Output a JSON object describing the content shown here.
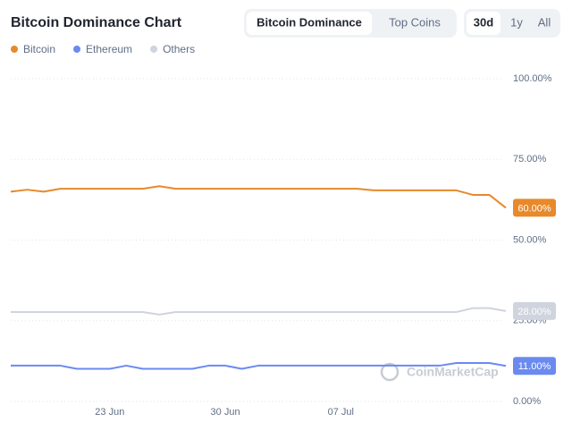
{
  "chart_data": {
    "type": "line",
    "title": "Bitcoin Dominance Chart",
    "categories": [
      null,
      null,
      null,
      null,
      null,
      null,
      "23 Jun",
      null,
      null,
      null,
      null,
      null,
      null,
      "30 Jun",
      null,
      null,
      null,
      null,
      null,
      null,
      "07 Jul",
      null,
      null,
      null,
      null,
      null,
      null,
      null,
      null,
      null,
      null
    ],
    "series": [
      {
        "name": "Bitcoin",
        "color": "#e8892b",
        "values": [
          65.0,
          65.6,
          65.0,
          65.9,
          65.9,
          65.9,
          65.9,
          65.9,
          65.9,
          66.7,
          65.9,
          65.9,
          65.9,
          65.9,
          65.9,
          65.9,
          65.9,
          65.9,
          65.9,
          65.9,
          65.9,
          65.9,
          65.4,
          65.4,
          65.4,
          65.4,
          65.4,
          65.4,
          64.0,
          64.0,
          60
        ],
        "value_labels": [
          null,
          null,
          null,
          null,
          null,
          null,
          null,
          null,
          null,
          null,
          null,
          null,
          null,
          null,
          null,
          null,
          null,
          null,
          null,
          null,
          null,
          null,
          null,
          null,
          null,
          null,
          null,
          null,
          null,
          null,
          "60.00%"
        ]
      },
      {
        "name": "Ethereum",
        "color": "#6b8af0",
        "values": [
          11.1,
          11.1,
          11.1,
          11.1,
          10.1,
          10.1,
          10.1,
          11.1,
          10.1,
          10.1,
          10.1,
          10.1,
          11.1,
          11.1,
          10.1,
          11.1,
          11.1,
          11.1,
          11.1,
          11.1,
          11.1,
          11.1,
          11.1,
          11.1,
          11.1,
          11.1,
          11.1,
          11.9,
          11.9,
          11.9,
          11
        ],
        "value_labels": [
          null,
          null,
          null,
          null,
          null,
          null,
          null,
          null,
          null,
          null,
          null,
          null,
          null,
          null,
          null,
          null,
          null,
          null,
          null,
          null,
          null,
          null,
          null,
          null,
          null,
          null,
          null,
          null,
          null,
          null,
          "11.00%"
        ]
      },
      {
        "name": "Others",
        "color": "#cfd4de",
        "values": [
          27.7,
          27.7,
          27.7,
          27.7,
          27.7,
          27.7,
          27.7,
          27.7,
          27.7,
          26.9,
          27.7,
          27.7,
          27.7,
          27.7,
          27.7,
          27.7,
          27.7,
          27.7,
          27.7,
          27.7,
          27.7,
          27.7,
          27.7,
          27.7,
          27.7,
          27.7,
          27.7,
          27.7,
          28.9,
          28.9,
          28
        ],
        "value_labels": [
          null,
          null,
          null,
          null,
          null,
          null,
          null,
          null,
          null,
          null,
          null,
          null,
          null,
          null,
          null,
          null,
          null,
          null,
          null,
          null,
          null,
          null,
          null,
          null,
          null,
          null,
          null,
          null,
          null,
          null,
          "28.00%"
        ]
      }
    ],
    "ylim": [
      0,
      100
    ],
    "yticks": [
      {
        "value": 0,
        "label": "0.00%"
      },
      {
        "value": 25,
        "label": "25.00%"
      },
      {
        "value": 50,
        "label": "50.00%"
      },
      {
        "value": 75,
        "label": "75.00%"
      },
      {
        "value": 100,
        "label": "100.00%"
      }
    ],
    "grid": true,
    "legend": "top-left",
    "watermark": "CoinMarketCap"
  },
  "controls": {
    "tabs": [
      "Bitcoin Dominance",
      "Top Coins"
    ],
    "ranges": [
      "30d",
      "1y",
      "All"
    ]
  }
}
